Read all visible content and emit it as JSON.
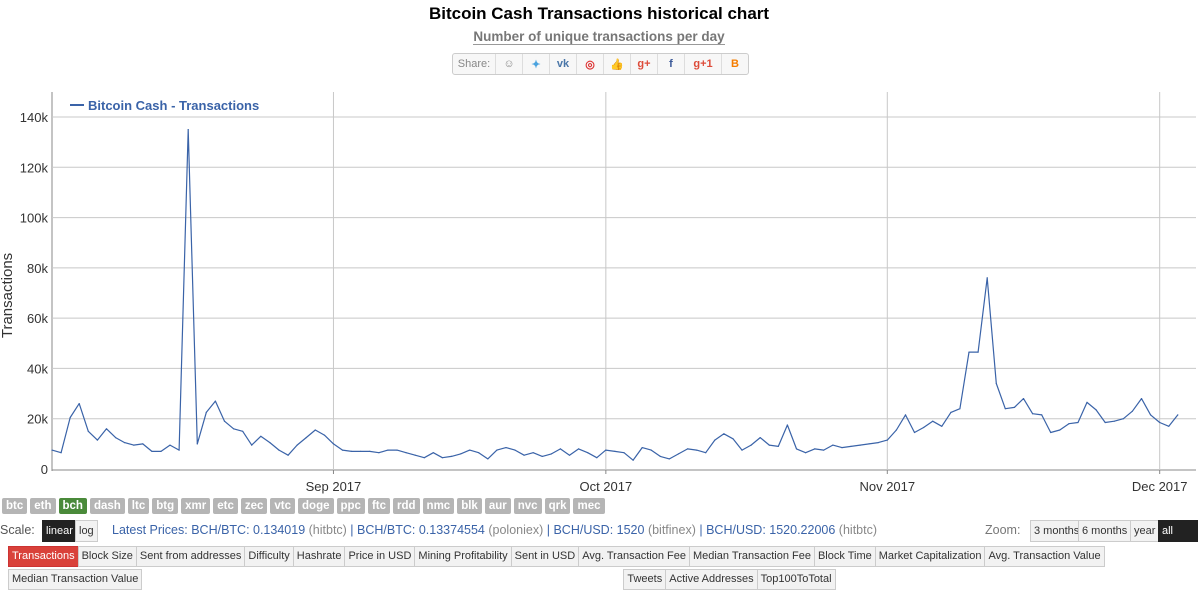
{
  "header": {
    "title": "Bitcoin Cash Transactions historical chart",
    "subtitle": "Number of unique transactions per day",
    "share_label": "Share:",
    "share_icons": [
      "reddit-icon",
      "twitter-icon",
      "vk-icon",
      "weibo-icon",
      "like-icon",
      "google-plus-icon",
      "facebook-icon",
      "google-plus-one-icon",
      "blogger-icon"
    ],
    "share_glyphs": [
      "☺",
      "✦",
      "vk",
      "◎",
      "👍",
      "g+",
      "f",
      "g+1",
      "B"
    ]
  },
  "chart_data": {
    "type": "line",
    "ylabel": "Transactions",
    "legend": "top-left",
    "grid": true,
    "ylim": [
      0,
      140000
    ],
    "yticks": [
      0,
      20000,
      40000,
      60000,
      80000,
      100000,
      120000,
      140000
    ],
    "ytick_labels": [
      "0",
      "20k",
      "40k",
      "60k",
      "80k",
      "100k",
      "120k",
      "140k"
    ],
    "xlim": [
      "2017-08-01",
      "2017-12-05"
    ],
    "xticks": [
      "2017-09-01",
      "2017-10-01",
      "2017-11-01",
      "2017-12-01"
    ],
    "xtick_labels": [
      "Sep 2017",
      "Oct 2017",
      "Nov 2017",
      "Dec 2017"
    ],
    "series": [
      {
        "name": "Bitcoin Cash - Transactions",
        "color": "#3a63a8",
        "x": [
          "2017-08-01",
          "2017-08-02",
          "2017-08-03",
          "2017-08-04",
          "2017-08-05",
          "2017-08-06",
          "2017-08-07",
          "2017-08-08",
          "2017-08-09",
          "2017-08-10",
          "2017-08-11",
          "2017-08-12",
          "2017-08-13",
          "2017-08-14",
          "2017-08-15",
          "2017-08-16",
          "2017-08-17",
          "2017-08-18",
          "2017-08-19",
          "2017-08-20",
          "2017-08-21",
          "2017-08-22",
          "2017-08-23",
          "2017-08-24",
          "2017-08-25",
          "2017-08-26",
          "2017-08-27",
          "2017-08-28",
          "2017-08-29",
          "2017-08-30",
          "2017-08-31",
          "2017-09-01",
          "2017-09-02",
          "2017-09-03",
          "2017-09-04",
          "2017-09-05",
          "2017-09-06",
          "2017-09-07",
          "2017-09-08",
          "2017-09-09",
          "2017-09-10",
          "2017-09-11",
          "2017-09-12",
          "2017-09-13",
          "2017-09-14",
          "2017-09-15",
          "2017-09-16",
          "2017-09-17",
          "2017-09-18",
          "2017-09-19",
          "2017-09-20",
          "2017-09-21",
          "2017-09-22",
          "2017-09-23",
          "2017-09-24",
          "2017-09-25",
          "2017-09-26",
          "2017-09-27",
          "2017-09-28",
          "2017-09-29",
          "2017-09-30",
          "2017-10-01",
          "2017-10-02",
          "2017-10-03",
          "2017-10-04",
          "2017-10-05",
          "2017-10-06",
          "2017-10-07",
          "2017-10-08",
          "2017-10-09",
          "2017-10-10",
          "2017-10-11",
          "2017-10-12",
          "2017-10-13",
          "2017-10-14",
          "2017-10-15",
          "2017-10-16",
          "2017-10-17",
          "2017-10-18",
          "2017-10-19",
          "2017-10-20",
          "2017-10-21",
          "2017-10-22",
          "2017-10-23",
          "2017-10-24",
          "2017-10-25",
          "2017-10-26",
          "2017-10-27",
          "2017-10-28",
          "2017-10-29",
          "2017-10-30",
          "2017-10-31",
          "2017-11-01",
          "2017-11-02",
          "2017-11-03",
          "2017-11-04",
          "2017-11-05",
          "2017-11-06",
          "2017-11-07",
          "2017-11-08",
          "2017-11-09",
          "2017-11-10",
          "2017-11-11",
          "2017-11-12",
          "2017-11-13",
          "2017-11-14",
          "2017-11-15",
          "2017-11-16",
          "2017-11-17",
          "2017-11-18",
          "2017-11-19",
          "2017-11-20",
          "2017-11-21",
          "2017-11-22",
          "2017-11-23",
          "2017-11-24",
          "2017-11-25",
          "2017-11-26",
          "2017-11-27",
          "2017-11-28",
          "2017-11-29",
          "2017-11-30",
          "2017-12-01",
          "2017-12-02",
          "2017-12-03"
        ],
        "y": [
          7500,
          6500,
          20500,
          26000,
          15000,
          11500,
          16000,
          12500,
          10500,
          9500,
          10000,
          7000,
          7000,
          9500,
          7500,
          135000,
          10000,
          22500,
          27000,
          19000,
          16000,
          15000,
          9500,
          13000,
          10500,
          7500,
          5500,
          9500,
          12500,
          15500,
          13500,
          10000,
          7500,
          7000,
          7000,
          7000,
          6500,
          7500,
          7500,
          6500,
          5500,
          4500,
          6500,
          4500,
          5000,
          6000,
          7500,
          6500,
          4000,
          7500,
          8500,
          7500,
          5500,
          6500,
          5000,
          6000,
          8000,
          5500,
          8000,
          6500,
          4500,
          7500,
          7000,
          6500,
          3500,
          8500,
          7500,
          5000,
          4000,
          6000,
          8000,
          7500,
          6500,
          11500,
          14000,
          12000,
          7500,
          9500,
          12500,
          9500,
          9000,
          17500,
          8000,
          6500,
          8000,
          7500,
          9500,
          8500,
          9000,
          9500,
          10000,
          10500,
          11500,
          15500,
          21500,
          14500,
          16500,
          19000,
          17000,
          22500,
          24000,
          46500,
          46500,
          76000,
          34000,
          24000,
          24500,
          28000,
          22000,
          21500,
          14500,
          15500,
          18000,
          18500,
          26500,
          23500,
          18500,
          19000,
          20000,
          23000,
          28000,
          21500,
          18500,
          17000,
          21500
        ]
      }
    ]
  },
  "footer": {
    "coins": [
      "btc",
      "eth",
      "bch",
      "dash",
      "ltc",
      "btg",
      "xmr",
      "etc",
      "zec",
      "vtc",
      "doge",
      "ppc",
      "ftc",
      "rdd",
      "nmc",
      "blk",
      "aur",
      "nvc",
      "qrk",
      "mec"
    ],
    "active_coin": 2,
    "scale_label": "Scale:",
    "scale_linear": "linear",
    "scale_log": "log",
    "prices": [
      {
        "text": "Latest Prices: BCH/BTC: 0.134019",
        "exchange": "(hitbtc)"
      },
      {
        "text": "BCH/BTC: 0.13374554",
        "exchange": "(poloniex)"
      },
      {
        "text": "BCH/USD: 1520",
        "exchange": "(bitfinex)"
      },
      {
        "text": "BCH/USD: 1520.22006",
        "exchange": "(hitbtc)"
      }
    ],
    "zoom_label": "Zoom:",
    "zoom_options": [
      "3 months",
      "6 months",
      "year",
      "all time"
    ],
    "active_zoom": 3,
    "tabs": [
      "Transactions",
      "Block Size",
      "Sent from addresses",
      "Difficulty",
      "Hashrate",
      "Price in USD",
      "Mining Profitability",
      "Sent in USD",
      "Avg. Transaction Fee",
      "Median Transaction Fee",
      "Block Time",
      "Market Capitalization",
      "Avg. Transaction Value",
      "Median Transaction Value",
      "Tweets",
      "Active Addresses",
      "Top100ToTotal"
    ],
    "active_tab": 0
  }
}
